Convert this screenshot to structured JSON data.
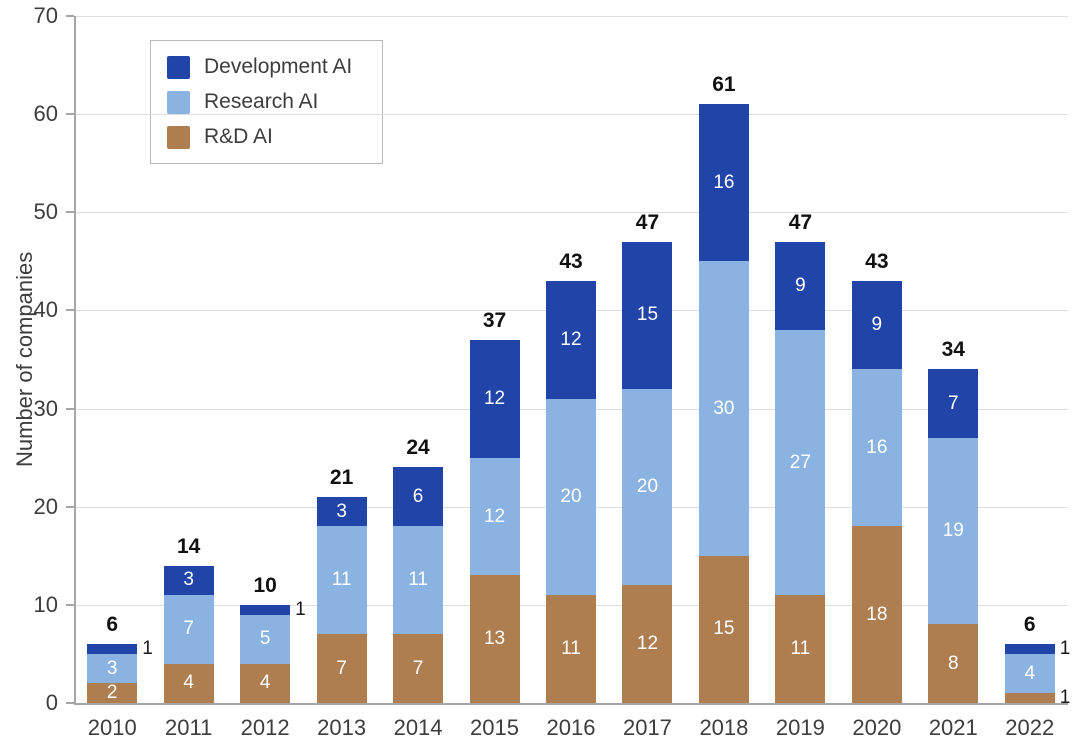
{
  "chart_data": {
    "type": "bar",
    "stacked": true,
    "title": "",
    "xlabel": "",
    "ylabel": "Number of companies",
    "ylim": [
      0,
      70
    ],
    "yticks": [
      0,
      10,
      20,
      30,
      40,
      50,
      60,
      70
    ],
    "grid": true,
    "legend_position": "top-left",
    "categories": [
      "2010",
      "2011",
      "2012",
      "2013",
      "2014",
      "2015",
      "2016",
      "2017",
      "2018",
      "2019",
      "2020",
      "2021",
      "2022"
    ],
    "series": [
      {
        "name": "R&D AI",
        "color": "#ae7e51",
        "values": [
          2,
          4,
          4,
          7,
          7,
          13,
          11,
          12,
          15,
          11,
          18,
          8,
          1
        ]
      },
      {
        "name": "Research AI",
        "color": "#8ab3e1",
        "values": [
          3,
          7,
          5,
          11,
          11,
          12,
          20,
          20,
          30,
          27,
          16,
          19,
          4
        ]
      },
      {
        "name": "Development AI",
        "color": "#2144a8",
        "values": [
          1,
          3,
          1,
          3,
          6,
          12,
          12,
          15,
          16,
          9,
          9,
          7,
          1
        ]
      }
    ],
    "totals": [
      6,
      14,
      10,
      21,
      24,
      37,
      43,
      47,
      61,
      47,
      43,
      34,
      6
    ],
    "legend": [
      {
        "label": "Development AI",
        "color": "#2144a8"
      },
      {
        "label": "Research AI",
        "color": "#8ab3e1"
      },
      {
        "label": "R&D AI",
        "color": "#ae7e51"
      }
    ],
    "colors": {
      "segment_label": "#ffffff",
      "outside_label": "#1a1a1a",
      "total_label": "#111111",
      "axis": "#a6a6a6",
      "grid": "#dedede"
    }
  }
}
